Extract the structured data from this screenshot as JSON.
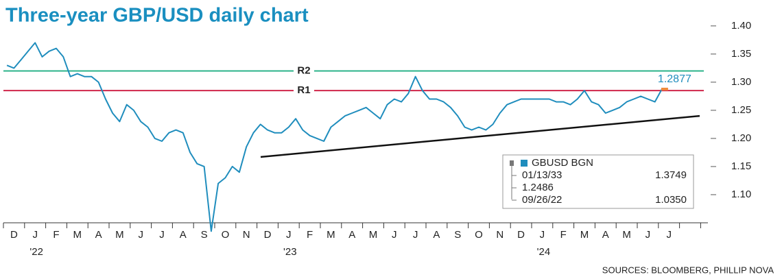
{
  "chart_data": {
    "type": "line",
    "title": "Three-year GBP/USD daily chart",
    "source": "SOURCES: BLOOMBERG, PHILLIP NOVA",
    "categories": [
      null,
      "D",
      null,
      null,
      "J",
      null,
      null,
      "F",
      null,
      null,
      "M",
      null,
      null,
      "A",
      null,
      null,
      "M",
      null,
      null,
      "J",
      null,
      null,
      "J",
      null,
      null,
      "A",
      null,
      null,
      "S",
      null,
      null,
      "O",
      null,
      null,
      "N",
      null,
      null,
      "D",
      null,
      null,
      "J",
      null,
      null,
      "F",
      null,
      null,
      "M",
      null,
      null,
      "A",
      null,
      null,
      "M",
      null,
      null,
      "J",
      null,
      null,
      "J",
      null,
      null,
      "A",
      null,
      null,
      "S",
      null,
      null,
      "O",
      null,
      null,
      "N",
      null,
      null,
      "D",
      null,
      null,
      "J",
      null,
      null,
      "F",
      null,
      null,
      "M",
      null,
      null,
      "A",
      null,
      null,
      "M",
      null,
      null,
      "J",
      null,
      null,
      "J",
      null
    ],
    "year_labels": [
      null,
      null,
      null,
      null,
      "'22",
      null,
      null,
      null,
      null,
      null,
      null,
      null,
      null,
      null,
      null,
      null,
      null,
      null,
      null,
      null,
      null,
      null,
      null,
      null,
      null,
      null,
      null,
      null,
      null,
      null,
      null,
      null,
      null,
      null,
      null,
      null,
      null,
      null,
      null,
      null,
      "'23",
      null,
      null,
      null,
      null,
      null,
      null,
      null,
      null,
      null,
      null,
      null,
      null,
      null,
      null,
      null,
      null,
      null,
      null,
      null,
      null,
      null,
      null,
      null,
      null,
      null,
      null,
      null,
      null,
      null,
      null,
      null,
      null,
      null,
      null,
      null,
      "'24",
      null,
      null,
      null,
      null,
      null,
      null,
      null,
      null,
      null,
      null,
      null,
      null,
      null,
      null,
      null,
      null,
      null,
      null,
      null
    ],
    "series": [
      {
        "name": "GBUSD BGN",
        "color": "#1f8dbd",
        "values": [
          1.33,
          1.325,
          1.34,
          1.355,
          1.37,
          1.345,
          1.355,
          1.36,
          1.345,
          1.31,
          1.315,
          1.31,
          1.31,
          1.3,
          1.27,
          1.245,
          1.23,
          1.26,
          1.25,
          1.23,
          1.22,
          1.2,
          1.195,
          1.21,
          1.215,
          1.21,
          1.175,
          1.155,
          1.15,
          1.035,
          1.12,
          1.13,
          1.15,
          1.14,
          1.185,
          1.21,
          1.225,
          1.215,
          1.21,
          1.21,
          1.22,
          1.235,
          1.215,
          1.205,
          1.2,
          1.195,
          1.22,
          1.23,
          1.24,
          1.245,
          1.25,
          1.255,
          1.245,
          1.235,
          1.26,
          1.27,
          1.265,
          1.28,
          1.31,
          1.285,
          1.27,
          1.27,
          1.265,
          1.255,
          1.24,
          1.22,
          1.215,
          1.22,
          1.215,
          1.225,
          1.245,
          1.26,
          1.265,
          1.27,
          1.27,
          1.27,
          1.27,
          1.27,
          1.265,
          1.265,
          1.26,
          1.27,
          1.285,
          1.265,
          1.26,
          1.245,
          1.25,
          1.255,
          1.265,
          1.27,
          1.275,
          1.27,
          1.265,
          1.2877,
          null,
          null
        ]
      }
    ],
    "ylim": [
      1.05,
      1.44
    ],
    "yticks": [
      {
        "value": 1.1,
        "label": "1.10"
      },
      {
        "value": 1.15,
        "label": "1.15"
      },
      {
        "value": 1.2,
        "label": "1.20"
      },
      {
        "value": 1.25,
        "label": "1.25"
      },
      {
        "value": 1.3,
        "label": "1.30"
      },
      {
        "value": 1.35,
        "label": "1.35"
      },
      {
        "value": 1.4,
        "label": "1.40"
      }
    ],
    "levels": [
      {
        "label": "R2",
        "value": 1.32,
        "color": "#2bb38a"
      },
      {
        "label": "R1",
        "value": 1.285,
        "color": "#d0264a"
      }
    ],
    "trend": {
      "values": [
        1.167,
        1.24
      ],
      "color": "#111111"
    },
    "legend_box": {
      "rows": [
        [
          "01/13/33",
          "1.3749"
        ],
        [
          "1.2486"
        ],
        [
          "09/26/22",
          "1.0350"
        ]
      ]
    }
  }
}
